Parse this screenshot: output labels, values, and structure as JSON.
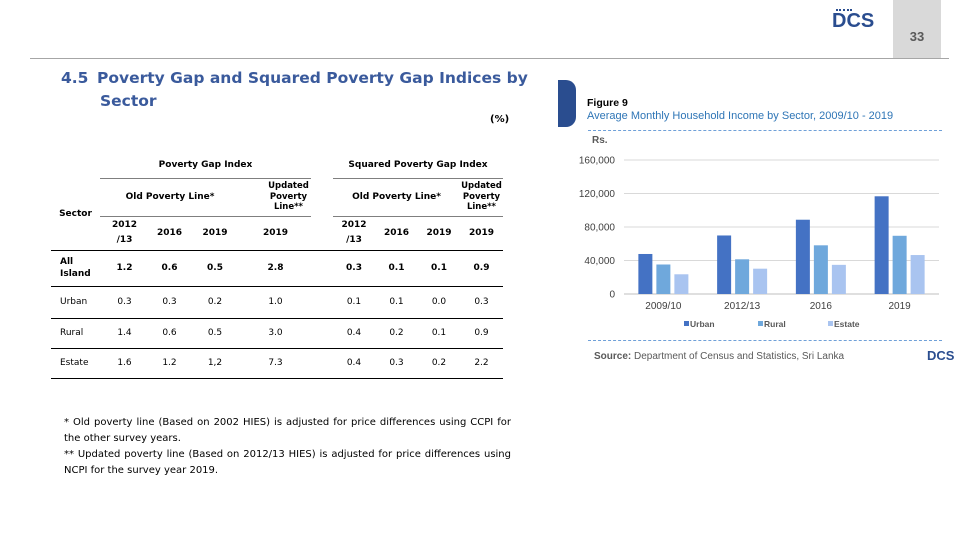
{
  "header": {
    "logo": "DCS",
    "page_number": "33"
  },
  "section": {
    "number": "4.5",
    "title_line1": "Poverty Gap and Squared Poverty Gap Indices by",
    "title_line2": "Sector",
    "unit": "(%)"
  },
  "table": {
    "sector_header": "Sector",
    "pgi_header": "Poverty Gap Index",
    "spgi_header": "Squared Poverty Gap Index",
    "old_line": "Old Poverty Line*",
    "updated_line_1": "Updated",
    "updated_line_2": "Poverty",
    "updated_line_3": "Line**",
    "years_a": [
      "2012",
      "/13",
      "2016",
      "2019",
      "2019"
    ],
    "years_b": [
      "2012",
      "/13",
      "2016",
      "2019",
      "2019"
    ],
    "rows": [
      {
        "sector_1": "All",
        "sector_2": "Island",
        "values": [
          "1.2",
          "0.6",
          "0.5",
          "2.8",
          "0.3",
          "0.1",
          "0.1",
          "0.9"
        ]
      },
      {
        "sector_1": "Urban",
        "sector_2": "",
        "values": [
          "0.3",
          "0.3",
          "0.2",
          "1.0",
          "0.1",
          "0.1",
          "0.0",
          "0.3"
        ]
      },
      {
        "sector_1": "Rural",
        "sector_2": "",
        "values": [
          "1.4",
          "0.6",
          "0.5",
          "3.0",
          "0.4",
          "0.2",
          "0.1",
          "0.9"
        ]
      },
      {
        "sector_1": "Estate",
        "sector_2": "",
        "values": [
          "1.6",
          "1.2",
          "1,2",
          "7.3",
          "0.4",
          "0.3",
          "0.2",
          "2.2"
        ]
      }
    ]
  },
  "notes": [
    "* Old poverty line (Based on 2002 HIES) is adjusted for price differences using CCPI for the other survey years.",
    "** Updated poverty line (Based on 2012/13 HIES) is adjusted for price differences using NCPI for the survey year 2019."
  ],
  "figure": {
    "label": "Figure 9",
    "caption": "Average Monthly Household Income by Sector, 2009/10  -  2019",
    "source_label": "Source:",
    "source_text": "Department of Census and Statistics, Sri Lanka",
    "logo": "DCS"
  },
  "chart_data": {
    "type": "bar",
    "title": "Average Monthly Household Income by Sector, 2009/10  -  2019",
    "ylabel": "Rs.",
    "xlabel": "",
    "categories": [
      "2009/10",
      "2012/13",
      "2016",
      "2019"
    ],
    "series": [
      {
        "name": "Urban",
        "color": "#4472c4",
        "values": [
          47783,
          69880,
          88692,
          116670
        ]
      },
      {
        "name": "Rural",
        "color": "#6fa8dc",
        "values": [
          35228,
          41436,
          58137,
          69517
        ]
      },
      {
        "name": "Estate",
        "color": "#a9c4f0",
        "values": [
          23540,
          30220,
          34804,
          46521
        ]
      }
    ],
    "ylim": [
      0,
      160000
    ],
    "yticks": [
      "0",
      "40,000",
      "80,000",
      "120,000",
      "160,000"
    ],
    "ytick_values": [
      0,
      40000,
      80000,
      120000,
      160000
    ],
    "grid": true,
    "legend": "bottom"
  }
}
